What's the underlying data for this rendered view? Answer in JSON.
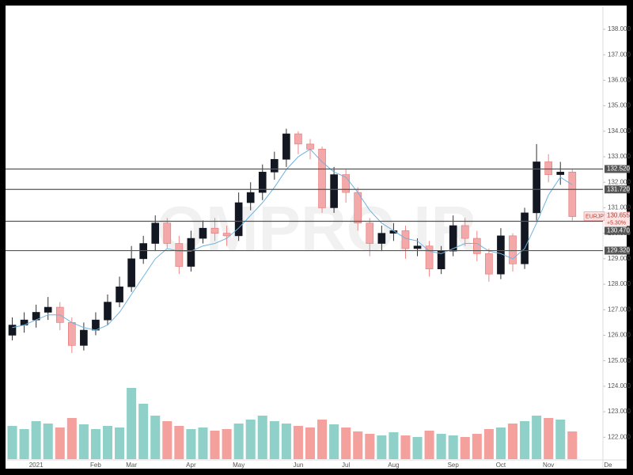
{
  "chart_data": {
    "type": "candlestick",
    "watermark": "OMPRO.IR",
    "symbol": "EURJPY",
    "change": "+5.30%",
    "categories": [
      null,
      null,
      "2021",
      null,
      null,
      null,
      null,
      "Feb",
      null,
      null,
      "Mar",
      null,
      null,
      null,
      null,
      "Apr",
      null,
      null,
      null,
      "May",
      null,
      null,
      null,
      null,
      "Jun",
      null,
      null,
      null,
      "Jul",
      null,
      null,
      null,
      "Aug",
      null,
      null,
      null,
      null,
      "Sep",
      null,
      null,
      null,
      "Oct",
      null,
      null,
      null,
      "Nov",
      null,
      null,
      null,
      null,
      "De"
    ],
    "open": [
      126.0,
      126.4,
      126.6,
      126.9,
      127.1,
      126.5,
      125.6,
      126.2,
      126.6,
      127.3,
      127.9,
      129.0,
      129.6,
      130.4,
      129.6,
      128.7,
      129.8,
      130.2,
      130.0,
      129.9,
      131.2,
      131.6,
      132.4,
      132.9,
      133.9,
      133.5,
      133.3,
      131.0,
      132.3,
      131.6,
      130.4,
      129.6,
      130.0,
      130.1,
      129.4,
      129.5,
      128.6,
      129.3,
      130.3,
      129.8,
      129.2,
      128.4,
      129.9,
      128.8,
      130.8,
      132.8,
      132.3,
      132.4,
      null,
      null,
      null
    ],
    "high": [
      126.7,
      126.9,
      127.2,
      127.5,
      127.3,
      126.7,
      126.5,
      126.9,
      127.6,
      128.3,
      129.5,
      129.9,
      130.7,
      130.6,
      129.9,
      130.1,
      130.5,
      130.6,
      130.3,
      131.6,
      132.0,
      132.7,
      133.2,
      134.1,
      134.0,
      133.7,
      133.4,
      132.6,
      132.5,
      131.8,
      130.6,
      130.3,
      130.4,
      130.3,
      129.8,
      129.7,
      129.5,
      130.7,
      130.6,
      130.1,
      129.4,
      130.2,
      130.0,
      131.0,
      133.5,
      133.1,
      132.8,
      132.5,
      null,
      null,
      null
    ],
    "low": [
      125.8,
      126.1,
      126.3,
      126.6,
      126.2,
      125.3,
      125.4,
      126.0,
      126.4,
      127.1,
      127.7,
      128.8,
      129.3,
      129.4,
      128.4,
      128.5,
      129.6,
      129.7,
      129.5,
      129.7,
      130.9,
      131.3,
      132.1,
      132.6,
      133.1,
      132.9,
      130.8,
      130.8,
      131.2,
      130.1,
      129.1,
      129.3,
      129.7,
      129.0,
      129.1,
      128.3,
      128.4,
      129.1,
      129.5,
      128.9,
      128.1,
      128.2,
      128.5,
      128.6,
      130.5,
      132.0,
      131.9,
      130.5,
      null,
      null,
      null
    ],
    "close": [
      126.4,
      126.6,
      126.9,
      127.1,
      126.5,
      125.6,
      126.2,
      126.6,
      127.3,
      127.9,
      129.0,
      129.6,
      130.4,
      129.6,
      128.7,
      129.8,
      130.2,
      130.0,
      129.9,
      131.2,
      131.6,
      132.4,
      132.9,
      133.9,
      133.5,
      133.3,
      131.0,
      132.3,
      131.6,
      130.4,
      129.6,
      130.0,
      130.1,
      129.4,
      129.5,
      128.6,
      129.3,
      130.3,
      129.8,
      129.2,
      128.4,
      129.9,
      128.8,
      130.8,
      132.8,
      132.3,
      132.4,
      130.655,
      null,
      null,
      null
    ],
    "ma": [
      126.3,
      126.4,
      126.6,
      126.8,
      126.8,
      126.5,
      126.3,
      126.2,
      126.4,
      126.9,
      127.6,
      128.3,
      129.0,
      129.4,
      129.3,
      129.3,
      129.5,
      129.6,
      129.8,
      130.2,
      130.7,
      131.2,
      131.8,
      132.5,
      133.0,
      133.3,
      132.8,
      132.4,
      132.2,
      131.6,
      130.9,
      130.4,
      130.1,
      129.8,
      129.7,
      129.3,
      129.2,
      129.4,
      129.6,
      129.6,
      129.3,
      129.2,
      129.0,
      129.4,
      130.4,
      131.5,
      132.2,
      131.9,
      null,
      null,
      null
    ],
    "volume": [
      42,
      38,
      48,
      45,
      40,
      52,
      44,
      38,
      42,
      40,
      90,
      70,
      55,
      48,
      42,
      38,
      40,
      36,
      38,
      45,
      50,
      55,
      48,
      45,
      42,
      40,
      50,
      44,
      40,
      35,
      32,
      30,
      34,
      30,
      28,
      36,
      32,
      30,
      28,
      32,
      38,
      40,
      45,
      48,
      55,
      52,
      50,
      35,
      null,
      null,
      null
    ],
    "volume_lim": [
      0,
      100
    ],
    "levels": [
      {
        "value": 132.52,
        "label": "132.520"
      },
      {
        "value": 131.72,
        "label": "131.720"
      },
      {
        "value": 130.47,
        "label": "130.470"
      },
      {
        "value": 129.32,
        "label": "129.320"
      }
    ],
    "ylim": [
      121.14,
      138.9
    ],
    "yticks": [
      {
        "value": 122,
        "label": "122.000"
      },
      {
        "value": 123,
        "label": "123.000"
      },
      {
        "value": 124,
        "label": "124.000"
      },
      {
        "value": 125,
        "label": "125.000"
      },
      {
        "value": 126,
        "label": "126.000"
      },
      {
        "value": 127,
        "label": "127.000"
      },
      {
        "value": 128,
        "label": "128.000"
      },
      {
        "value": 129,
        "label": "129.000"
      },
      {
        "value": 130,
        "label": "130.000"
      },
      {
        "value": 131,
        "label": "131.000"
      },
      {
        "value": 132,
        "label": "132.000"
      },
      {
        "value": 133,
        "label": "133.000"
      },
      {
        "value": 134,
        "label": "134.000"
      },
      {
        "value": 135,
        "label": "135.000"
      },
      {
        "value": 136,
        "label": "136.000"
      },
      {
        "value": 137,
        "label": "137.000"
      },
      {
        "value": 138,
        "label": "138.000"
      }
    ],
    "up_color": "#131722",
    "down_color": "#f3a9a9",
    "ma_color": "#6fb3e0",
    "volume_up_color": "#8fd0c8",
    "volume_down_color": "#f4a09c",
    "level_color": "#555555",
    "last_color": "#e57373"
  }
}
